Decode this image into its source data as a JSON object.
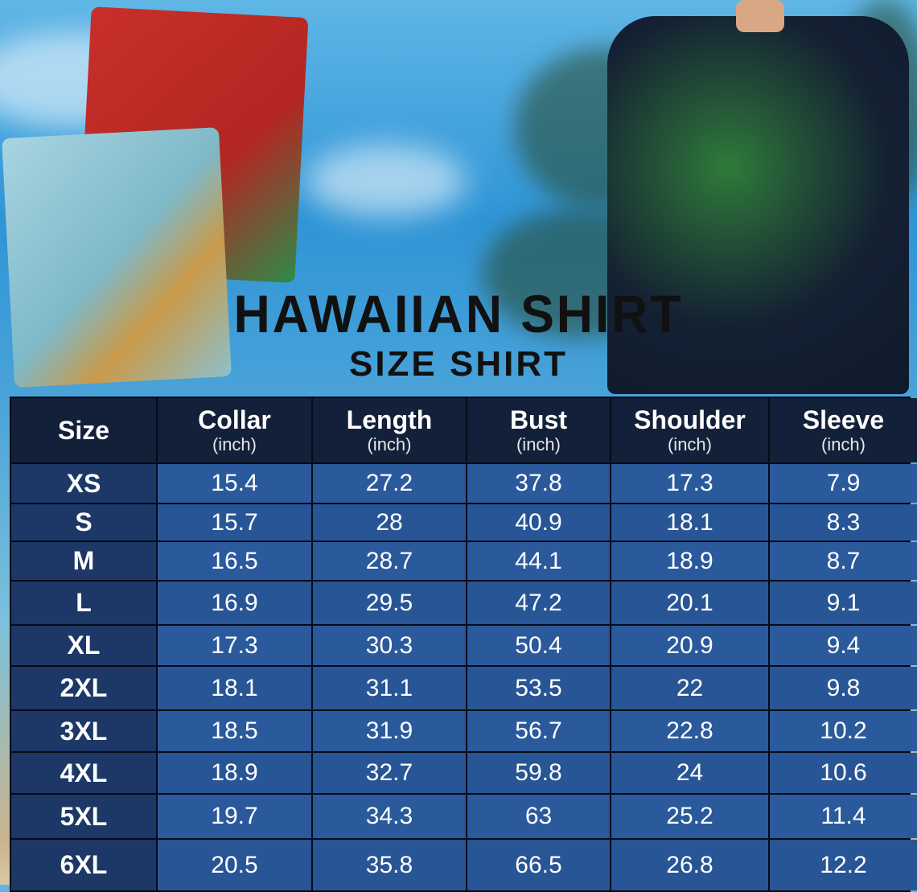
{
  "title": "HAWAIIAN SHIRT",
  "subtitle": "SIZE SHIRT",
  "chart_data": {
    "type": "table",
    "headers": [
      {
        "label": "Size",
        "unit": ""
      },
      {
        "label": "Collar",
        "unit": "(inch)"
      },
      {
        "label": "Length",
        "unit": "(inch)"
      },
      {
        "label": "Bust",
        "unit": "(inch)"
      },
      {
        "label": "Shoulder",
        "unit": "(inch)"
      },
      {
        "label": "Sleeve",
        "unit": "(inch)"
      }
    ],
    "rows": [
      [
        "XS",
        "15.4",
        "27.2",
        "37.8",
        "17.3",
        "7.9"
      ],
      [
        "S",
        "15.7",
        "28",
        "40.9",
        "18.1",
        "8.3"
      ],
      [
        "M",
        "16.5",
        "28.7",
        "44.1",
        "18.9",
        "8.7"
      ],
      [
        "L",
        "16.9",
        "29.5",
        "47.2",
        "20.1",
        "9.1"
      ],
      [
        "XL",
        "17.3",
        "30.3",
        "50.4",
        "20.9",
        "9.4"
      ],
      [
        "2XL",
        "18.1",
        "31.1",
        "53.5",
        "22",
        "9.8"
      ],
      [
        "3XL",
        "18.5",
        "31.9",
        "56.7",
        "22.8",
        "10.2"
      ],
      [
        "4XL",
        "18.9",
        "32.7",
        "59.8",
        "24",
        "10.6"
      ],
      [
        "5XL",
        "19.7",
        "34.3",
        "63",
        "25.2",
        "11.4"
      ],
      [
        "6XL",
        "20.5",
        "35.8",
        "66.5",
        "26.8",
        "12.2"
      ]
    ]
  },
  "colors": {
    "header": "#13203a",
    "size_col": "#1d3866",
    "cell": "#2b5a9c"
  }
}
